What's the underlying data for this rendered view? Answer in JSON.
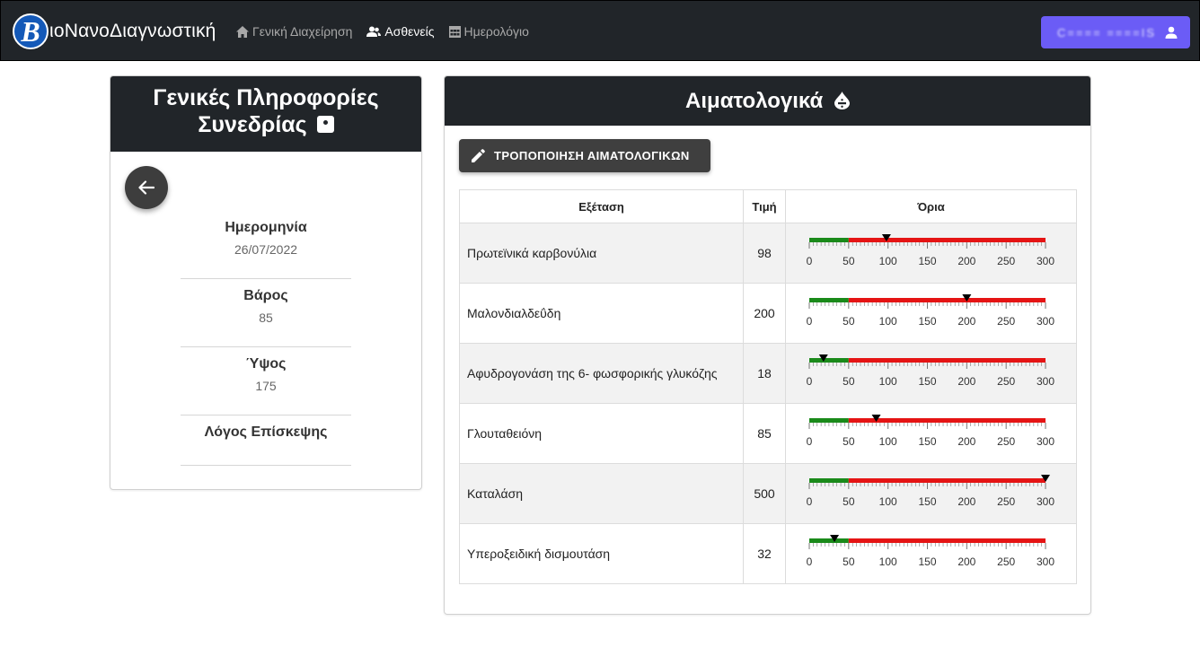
{
  "navbar": {
    "logo_letter": "B",
    "brand": "ιοΝανοΔιαγνωστική",
    "links": [
      {
        "label": "Γενική Διαχείρηση",
        "icon": "home-icon"
      },
      {
        "label": "Ασθενείς",
        "icon": "users-icon"
      },
      {
        "label": "Ημερολόγιο",
        "icon": "calendar-icon"
      }
    ],
    "user_name": "C==== ====IS",
    "colors": {
      "background": "#212529",
      "user_button": "#6b5cf6"
    }
  },
  "session": {
    "title_line1": "Γενικές Πληροφορίες",
    "title_line2": "Συνεδρίας",
    "fields": [
      {
        "label": "Ημερομηνία",
        "value": "26/07/2022"
      },
      {
        "label": "Βάρος",
        "value": "85"
      },
      {
        "label": "Ύψος",
        "value": "175"
      },
      {
        "label": "Λόγος Επίσκεψης",
        "value": ""
      }
    ]
  },
  "blood": {
    "title": "Αιματολογικά",
    "edit_button": "ΤΡΟΠΟΠΟΙΗΣΗ ΑΙΜΑΤΟΛΟΓΙΚΩΝ",
    "columns": [
      "Εξέταση",
      "Τιμή",
      "Όρια"
    ],
    "scale": {
      "min": 0,
      "max": 300,
      "normal_min": 0,
      "normal_max": 50,
      "ticks": [
        "0",
        "50",
        "100",
        "150",
        "200",
        "250",
        "300"
      ]
    },
    "colors": {
      "normal": "#1a8a1a",
      "abnormal": "#e51414"
    },
    "rows": [
      {
        "name": "Πρωτεϊνικά καρβονύλια",
        "value": "98",
        "level": 98
      },
      {
        "name": "Μαλονδιαλδεΰδη",
        "value": "200",
        "level": 200
      },
      {
        "name": "Αφυδρογονάση της 6- φωσφορικής γλυκόζης",
        "value": "18",
        "level": 18
      },
      {
        "name": "Γλουταθειόνη",
        "value": "85",
        "level": 85
      },
      {
        "name": "Καταλάση",
        "value": "500",
        "level": 500
      },
      {
        "name": "Υπεροξειδική δισμουτάση",
        "value": "32",
        "level": 32
      }
    ]
  }
}
